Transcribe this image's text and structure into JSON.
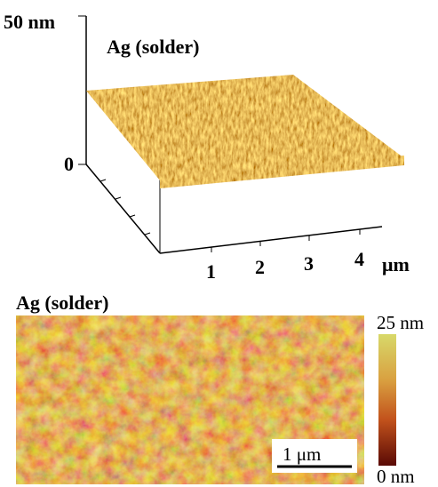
{
  "panel_3d": {
    "z_axis_top": "50 nm",
    "z_axis_bottom": "0",
    "label": "Ag (solder)",
    "x_ticks": [
      "1",
      "2",
      "3",
      "4"
    ],
    "x_unit": "μm"
  },
  "panel_2d": {
    "label": "Ag (solder)",
    "colorbar_max": "25 nm",
    "colorbar_min": "0 nm",
    "scale_bar": "1 μm"
  }
}
